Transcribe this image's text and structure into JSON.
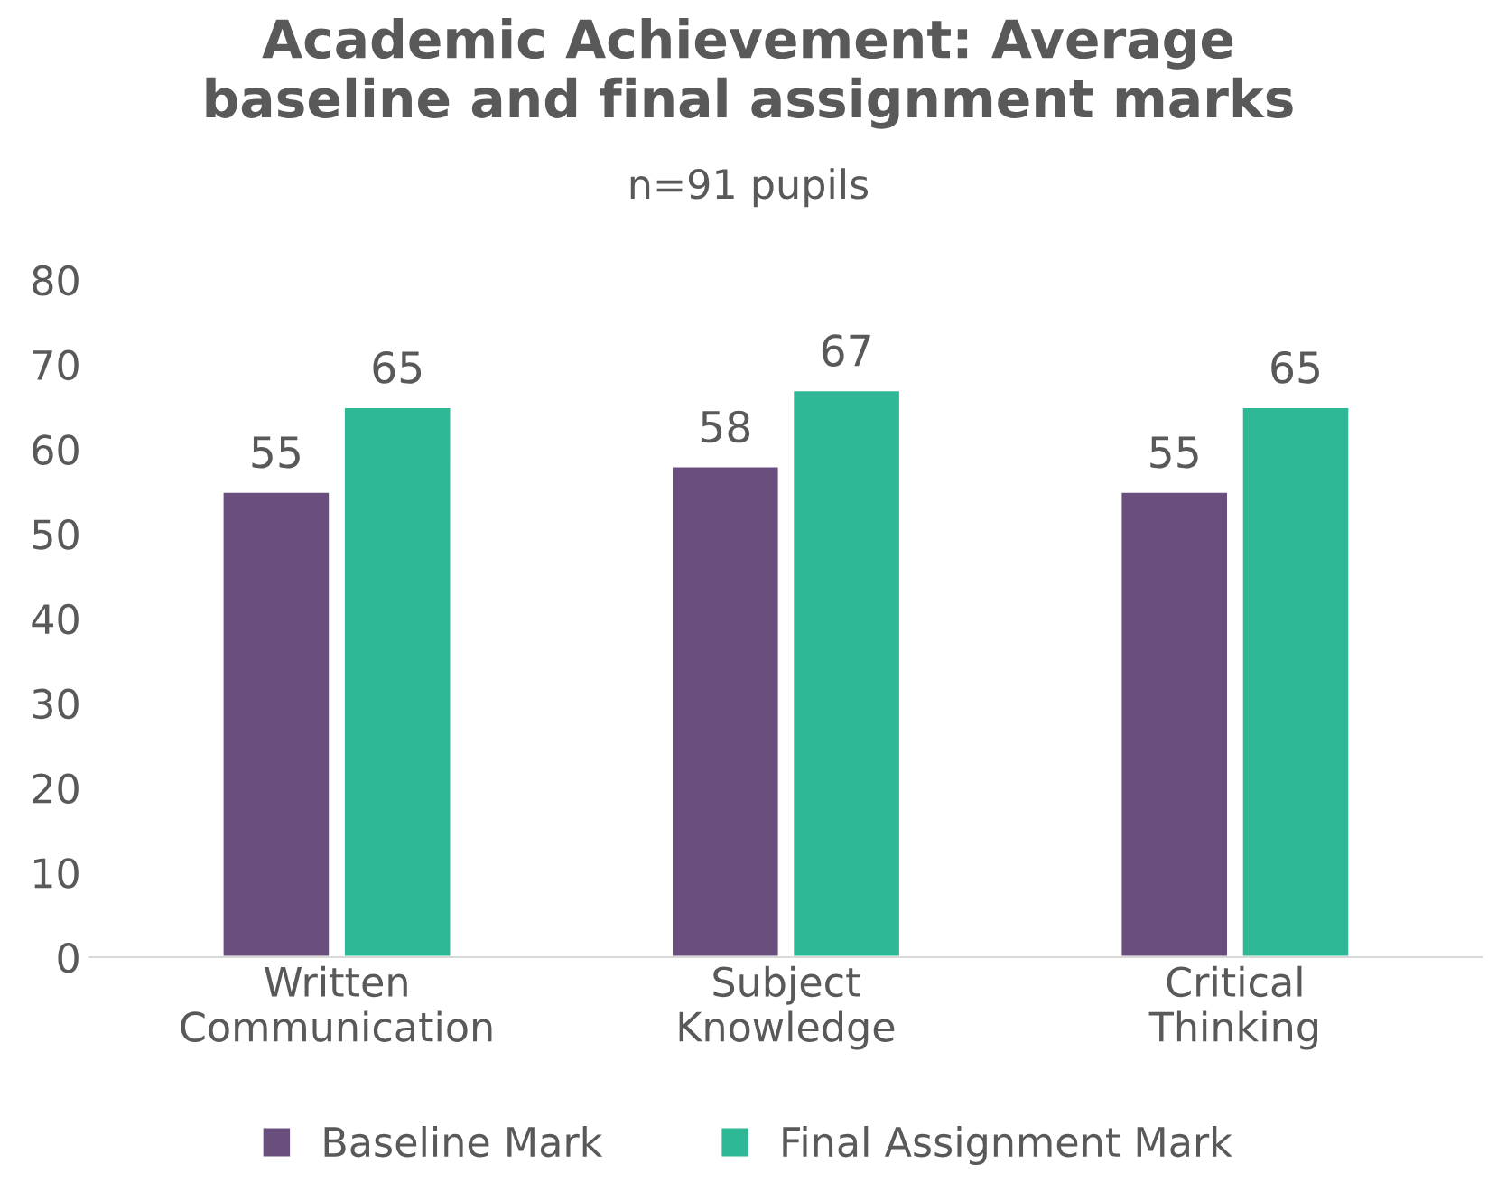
{
  "chart_data": {
    "type": "bar",
    "title": "Academic Achievement: Average\nbaseline and final assignment marks",
    "subtitle": "n=91 pupils",
    "categories": [
      "Written Communication",
      "Subject Knowledge",
      "Critical Thinking"
    ],
    "series": [
      {
        "name": "Baseline Mark",
        "color": "#6a4f7e",
        "values": [
          55,
          58,
          55
        ]
      },
      {
        "name": "Final Assignment Mark",
        "color": "#2fb895",
        "values": [
          65,
          67,
          65
        ]
      }
    ],
    "ylim": [
      0,
      80
    ],
    "yticks": [
      0,
      10,
      20,
      30,
      40,
      50,
      60,
      70,
      80
    ],
    "grid": false,
    "legend": "bottom",
    "data_labels": true
  }
}
